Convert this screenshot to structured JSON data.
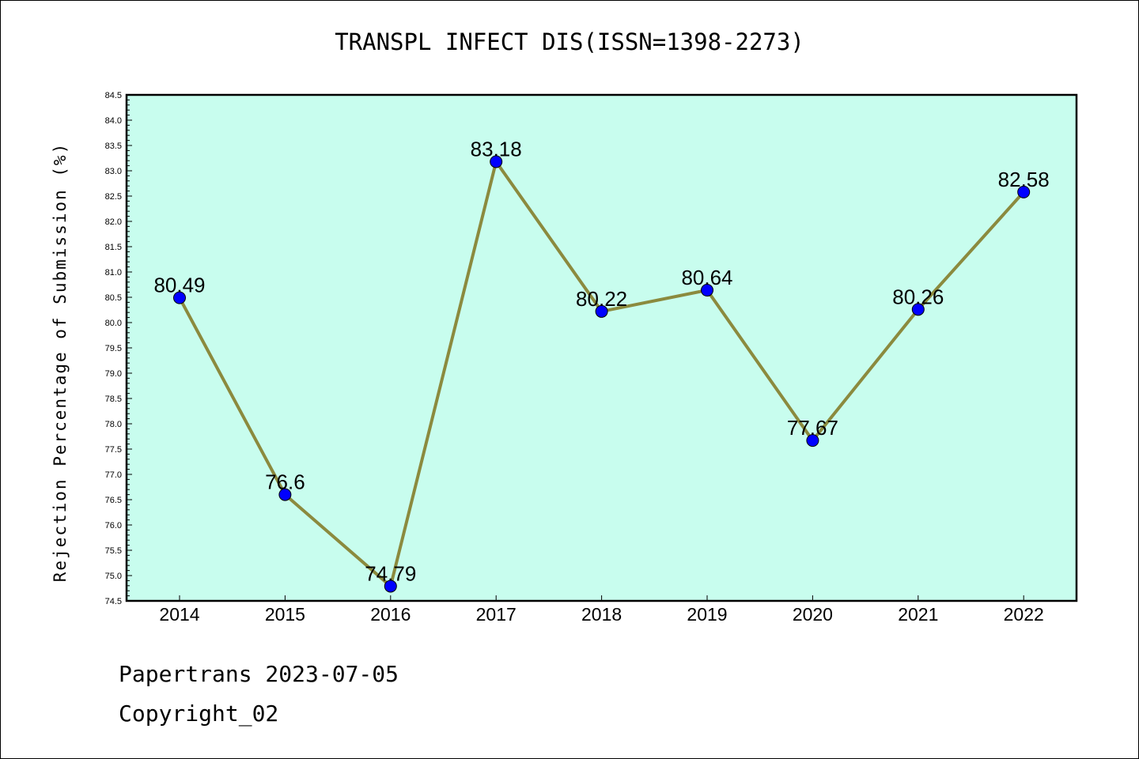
{
  "chart_data": {
    "type": "line",
    "title": "TRANSPL INFECT DIS(ISSN=1398-2273)",
    "ylabel": "Rejection Percentage of Submission (%)",
    "xlabel": "",
    "categories": [
      "2014",
      "2015",
      "2016",
      "2017",
      "2018",
      "2019",
      "2020",
      "2021",
      "2022"
    ],
    "values": [
      80.49,
      76.6,
      74.79,
      83.18,
      80.22,
      80.64,
      77.67,
      80.26,
      82.58
    ],
    "labels": [
      "80.49",
      "76.6",
      "74.79",
      "83.18",
      "80.22",
      "80.64",
      "77.67",
      "80.26",
      "82.58"
    ],
    "ylim": [
      74.5,
      84.5
    ],
    "ytick_step": 0.5,
    "grid": false,
    "legend": "none",
    "colors": {
      "plot_background": "#c8fdee",
      "line": "#8b8a3e",
      "marker": "#0000ff"
    }
  },
  "footer": {
    "line1": "Papertrans 2023-07-05",
    "line2": "Copyright_02"
  }
}
